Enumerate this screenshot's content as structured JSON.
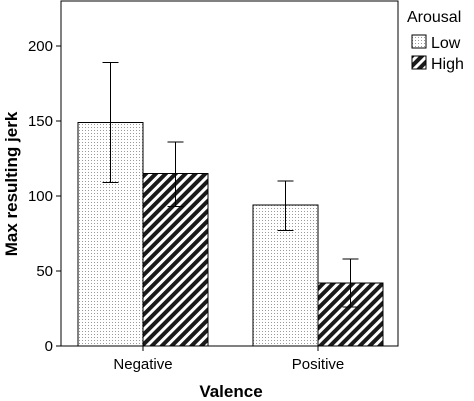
{
  "chart_data": {
    "type": "bar",
    "xlabel": "Valence",
    "ylabel": "Max resulting jerk",
    "categories": [
      "Negative",
      "Positive"
    ],
    "ylim": [
      0,
      230
    ],
    "yticks": [
      0,
      50,
      100,
      150,
      200
    ],
    "legend": {
      "title": "Arousal",
      "placement": "right"
    },
    "series": [
      {
        "name": "Low",
        "pattern": "dotted",
        "values": [
          149,
          94
        ],
        "error_low": [
          109,
          77
        ],
        "error_high": [
          189,
          110
        ]
      },
      {
        "name": "High",
        "pattern": "hatched",
        "values": [
          115,
          42
        ],
        "error_low": [
          93,
          26
        ],
        "error_high": [
          136,
          58
        ]
      }
    ]
  }
}
